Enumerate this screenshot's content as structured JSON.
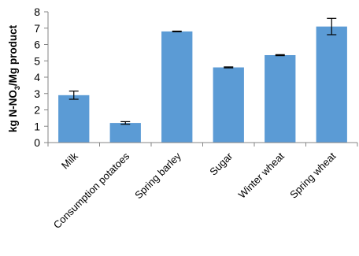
{
  "chart_data": {
    "type": "bar",
    "categories": [
      "Milk",
      "Consumption potatoes",
      "Spring barley",
      "Sugar",
      "Winter wheat",
      "Spring wheat"
    ],
    "values": [
      2.9,
      1.2,
      6.8,
      4.6,
      5.35,
      7.1
    ],
    "error_bars": [
      0.25,
      0.08,
      0.02,
      0.03,
      0.03,
      0.5
    ],
    "ylabel": {
      "prefix": "kg N-NO",
      "subscript": "3",
      "suffix": "/Mg product"
    },
    "ylim": [
      0,
      8
    ],
    "yticks": [
      "0",
      "1",
      "2",
      "3",
      "4",
      "5",
      "6",
      "7",
      "8"
    ],
    "bar_color": "#5b9bd5",
    "grid": false,
    "legend": "none"
  }
}
